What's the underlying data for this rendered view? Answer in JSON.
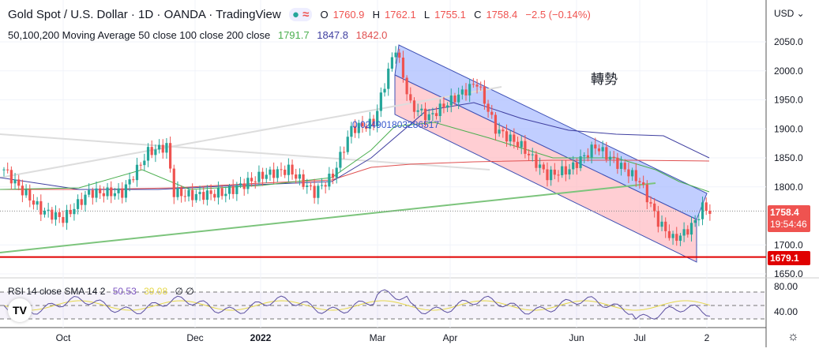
{
  "header": {
    "title": "Gold Spot / U.S. Dollar · 1D · OANDA · TradingView",
    "o_label": "O",
    "o": "1760.9",
    "h_label": "H",
    "h": "1762.1",
    "l_label": "L",
    "l": "1755.1",
    "c_label": "C",
    "c": "1758.4",
    "change": "−2.5 (−0.14%)",
    "ma_label": "50,100,200 Moving Average 50 close 100 close 200 close",
    "ma50": "1791.7",
    "ma100": "1847.8",
    "ma200": "1842.0"
  },
  "annotation": "轉勢",
  "fib_label": "0.024901803286517",
  "currency": "USD ⌄",
  "last_price": "1758.4",
  "countdown": "19:54:46",
  "support_price": "1679.1",
  "rsi": {
    "label": "RSI 14 close SMA 14 2",
    "value": "50.53",
    "sma": "39.08",
    "extra": "∅ ∅",
    "ticks": [
      "80.00",
      "40.00"
    ]
  },
  "colors": {
    "up": "#26a69a",
    "down": "#ef5350",
    "ma50": "#4caf50",
    "ma100": "#3f3fa0",
    "ma200": "#e05050",
    "support": "#e00000",
    "channel_upper": "#9fb4ff",
    "channel_lower": "#ffb3bb"
  },
  "chart_data": {
    "type": "candlestick",
    "title": "Gold Spot / U.S. Dollar · 1D",
    "ylim": [
      1630,
      2080
    ],
    "y_ticks": [
      2050,
      2000,
      1950,
      1900,
      1850,
      1800,
      1700,
      1650
    ],
    "x_ticks": [
      "Oct",
      "Dec",
      "2022",
      "Mar",
      "Apr",
      "Jun",
      "Jul",
      "2"
    ],
    "close_waypoints": [
      [
        0,
        1830
      ],
      [
        4,
        1800
      ],
      [
        10,
        1760
      ],
      [
        16,
        1745
      ],
      [
        23,
        1790
      ],
      [
        32,
        1790
      ],
      [
        39,
        1860
      ],
      [
        44,
        1870
      ],
      [
        46,
        1790
      ],
      [
        51,
        1785
      ],
      [
        60,
        1790
      ],
      [
        70,
        1820
      ],
      [
        77,
        1830
      ],
      [
        84,
        1790
      ],
      [
        89,
        1820
      ],
      [
        94,
        1900
      ],
      [
        100,
        1910
      ],
      [
        104,
        2000
      ],
      [
        106,
        2040
      ],
      [
        110,
        1940
      ],
      [
        115,
        1920
      ],
      [
        119,
        1940
      ],
      [
        128,
        1980
      ],
      [
        133,
        1900
      ],
      [
        140,
        1870
      ],
      [
        147,
        1820
      ],
      [
        153,
        1830
      ],
      [
        160,
        1870
      ],
      [
        166,
        1840
      ],
      [
        172,
        1810
      ],
      [
        177,
        1740
      ],
      [
        181,
        1710
      ],
      [
        184,
        1720
      ],
      [
        187,
        1740
      ],
      [
        189,
        1765
      ],
      [
        191,
        1758
      ]
    ],
    "horizontal_support": 1679.1
  }
}
